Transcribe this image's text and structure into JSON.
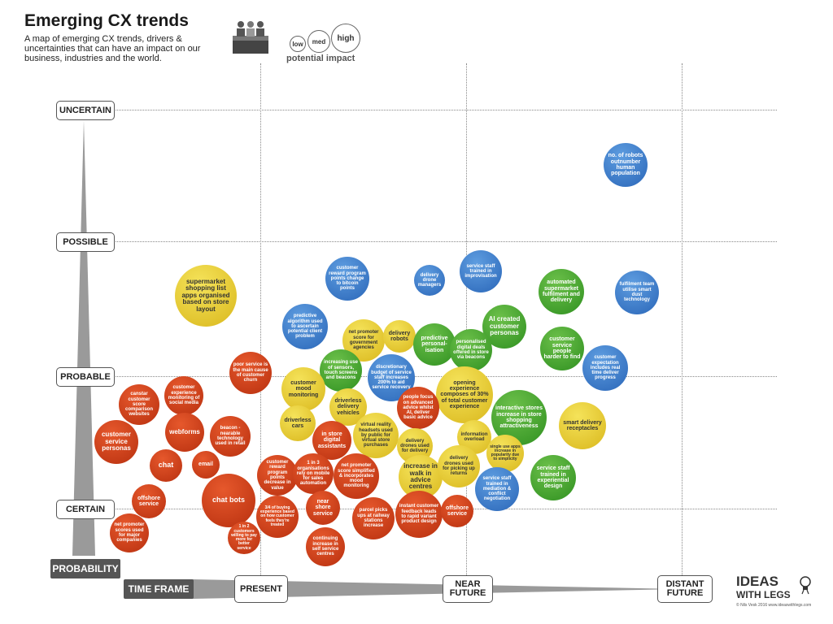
{
  "header": {
    "title": "Emerging CX trends",
    "subtitle": "A map of emerging CX trends, drivers & uncertainties that can have an impact on our business, industries and the world."
  },
  "legend": {
    "impact_sizes": [
      "low",
      "med",
      "high"
    ],
    "impact_title": "potential impact"
  },
  "axes": {
    "probability_levels": [
      "UNCERTAIN",
      "POSSIBLE",
      "PROBABLE",
      "CERTAIN"
    ],
    "probability_title": "PROBABILITY",
    "timeframe_title": "TIME FRAME",
    "timeframe_levels": [
      "PRESENT",
      "NEAR FUTURE",
      "DISTANT FUTURE"
    ]
  },
  "logo": {
    "line1": "IDEAS",
    "line2": "WITH LEGS"
  },
  "copyright": "© Nils Vesk 2016  www.ideaswithlegs.com",
  "colors": {
    "red": "#c93d18",
    "yellow": "#e8c930",
    "green": "#47a832",
    "blue": "#3a7bcc"
  },
  "bubbles": [
    {
      "text": "no. of robots outnumber human population",
      "color": "blue"
    },
    {
      "text": "supermarket shopping list apps organised based on store layout",
      "color": "yellow"
    },
    {
      "text": "customer reward program points change to bitcoin points",
      "color": "blue"
    },
    {
      "text": "delivery drone managers",
      "color": "blue"
    },
    {
      "text": "service staff trained in improvisation",
      "color": "blue"
    },
    {
      "text": "automated supermarket fulfilment and delivery",
      "color": "green"
    },
    {
      "text": "fulfilment team utilise smart dust technology",
      "color": "blue"
    },
    {
      "text": "predictive algorithm used to ascertain potential client problem",
      "color": "blue"
    },
    {
      "text": "net promoter score for government agencies",
      "color": "yellow"
    },
    {
      "text": "delivery robots",
      "color": "yellow"
    },
    {
      "text": "predictive personal-isation",
      "color": "green"
    },
    {
      "text": "AI created customer personas",
      "color": "green"
    },
    {
      "text": "personalised digital deals offered in store via beacons",
      "color": "green"
    },
    {
      "text": "customer service people harder to find",
      "color": "green"
    },
    {
      "text": "customer expectation includes real time deliver progress",
      "color": "blue"
    },
    {
      "text": "poor service is the main cause of customer churn",
      "color": "red"
    },
    {
      "text": "increasing use of sensors, touch screens and beacons",
      "color": "green"
    },
    {
      "text": "discretionary budget of service staff increases 200% to aid service recovery",
      "color": "blue"
    },
    {
      "text": "opening experience composes of 30% of total customer experience",
      "color": "yellow"
    },
    {
      "text": "customer mood monitoring",
      "color": "yellow"
    },
    {
      "text": "customer experience monitoring of social media",
      "color": "red"
    },
    {
      "text": "canstar customer score comparison websites",
      "color": "red"
    },
    {
      "text": "driverless delivery vehicles",
      "color": "yellow"
    },
    {
      "text": "people focus on advanced advice whilst AI, deliver basic advice",
      "color": "red"
    },
    {
      "text": "interactive stores increase in store shopping attractiveness",
      "color": "green"
    },
    {
      "text": "smart delivery receptacles",
      "color": "yellow"
    },
    {
      "text": "driverless cars",
      "color": "yellow"
    },
    {
      "text": "webforms",
      "color": "red"
    },
    {
      "text": "beacon - nearable technology used in retail",
      "color": "red"
    },
    {
      "text": "in store digital assistants",
      "color": "red"
    },
    {
      "text": "virtual reality headsets used by public for virtual store purchases",
      "color": "yellow"
    },
    {
      "text": "information overload",
      "color": "yellow"
    },
    {
      "text": "customer service personas",
      "color": "red"
    },
    {
      "text": "delivery drones used for delivery",
      "color": "yellow"
    },
    {
      "text": "single use apps increase in popularity due to simplicity",
      "color": "yellow"
    },
    {
      "text": "chat",
      "color": "red"
    },
    {
      "text": "email",
      "color": "red"
    },
    {
      "text": "customer reward program points decrease in value",
      "color": "red"
    },
    {
      "text": "1 in 3 organisations rely on mobile for sales automation",
      "color": "red"
    },
    {
      "text": "net promoter score simplified & incorporates mood monitoring",
      "color": "red"
    },
    {
      "text": "increase in walk in advice centres",
      "color": "yellow"
    },
    {
      "text": "delivery drones used for picking up returns",
      "color": "yellow"
    },
    {
      "text": "service staff trained in experiential design",
      "color": "green"
    },
    {
      "text": "service staff trained in mediation & conflict negotiation",
      "color": "blue"
    },
    {
      "text": "offshore service",
      "color": "red"
    },
    {
      "text": "chat bots",
      "color": "red"
    },
    {
      "text": "3/4 of buying experience based on how customer feels they're treated",
      "color": "red"
    },
    {
      "text": "near shore service",
      "color": "red"
    },
    {
      "text": "parcel picks ups at railway stations increase",
      "color": "red"
    },
    {
      "text": "instant customer feedback leads to rapid variant product design",
      "color": "red"
    },
    {
      "text": "offshore service",
      "color": "red"
    },
    {
      "text": "net promoter scores used for major companies",
      "color": "red"
    },
    {
      "text": "1 in 2 customers willing to pay more for better service",
      "color": "red"
    },
    {
      "text": "continuing increase in self service centres",
      "color": "red"
    }
  ]
}
